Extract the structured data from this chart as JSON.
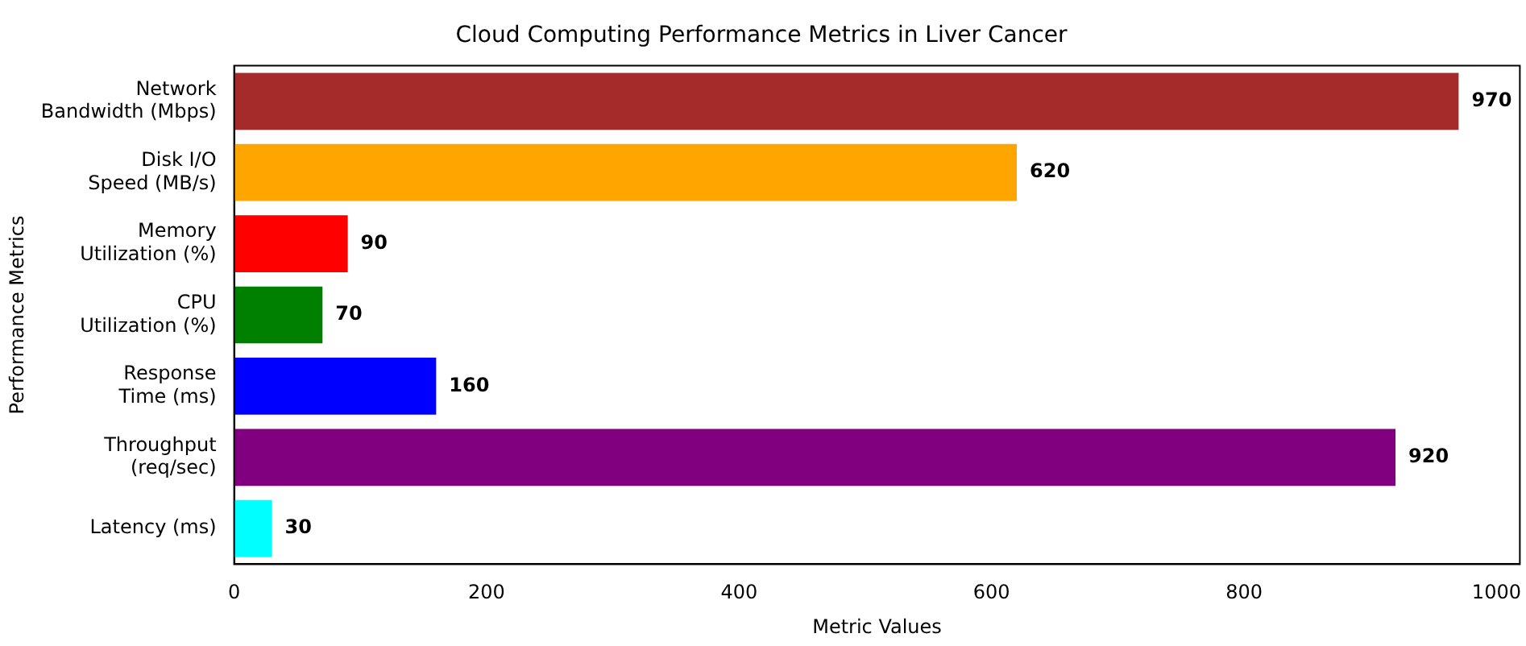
{
  "chart_data": {
    "type": "bar",
    "orientation": "horizontal",
    "title": "Cloud Computing Performance Metrics in Liver Cancer",
    "xlabel": "Metric Values",
    "ylabel": "Performance Metrics",
    "categories": [
      "Network\nBandwidth (Mbps)",
      "Disk I/O\nSpeed (MB/s)",
      "Memory\nUtilization (%)",
      "CPU\nUtilization (%)",
      "Response\nTime (ms)",
      "Throughput\n(req/sec)",
      "Latency (ms)"
    ],
    "values": [
      970,
      620,
      90,
      70,
      160,
      920,
      30
    ],
    "colors": [
      "#a52a2a",
      "#ffa500",
      "#ff0000",
      "#008000",
      "#0000ff",
      "#800080",
      "#00ffff"
    ],
    "xlim": [
      0,
      1018.5
    ],
    "xticks": [
      0,
      200,
      400,
      600,
      800,
      1000
    ],
    "grid": false,
    "legend": false,
    "data_labels": true
  }
}
